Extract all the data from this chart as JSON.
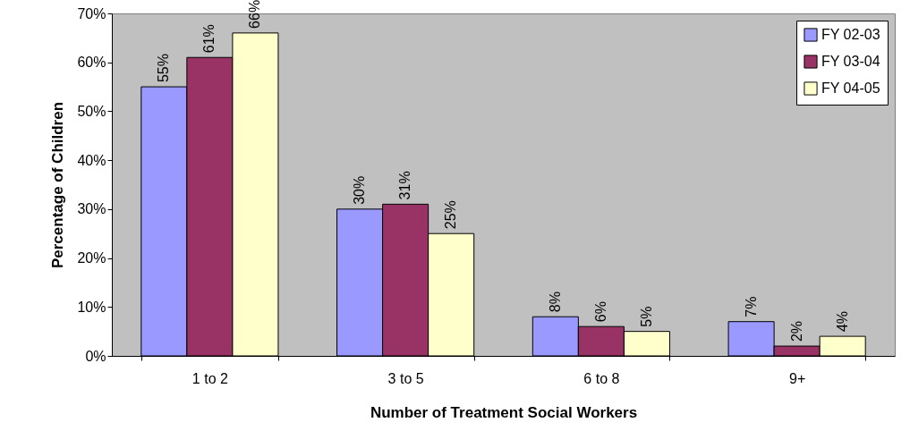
{
  "chart_data": {
    "type": "bar",
    "xlabel": "Number of Treatment Social Workers",
    "ylabel": "Percentage of Children",
    "categories": [
      "1 to 2",
      "3 to 5",
      "6 to 8",
      "9+"
    ],
    "series": [
      {
        "name": "FY 02-03",
        "color": "#9999ff",
        "values": [
          55,
          30,
          8,
          7
        ],
        "value_labels": [
          "55%",
          "30%",
          "8%",
          "7%"
        ]
      },
      {
        "name": "FY 03-04",
        "color": "#993366",
        "values": [
          61,
          31,
          6,
          2
        ],
        "value_labels": [
          "61%",
          "31%",
          "6%",
          "2%"
        ]
      },
      {
        "name": "FY 04-05",
        "color": "#ffffcc",
        "values": [
          66,
          25,
          5,
          4
        ],
        "value_labels": [
          "66%",
          "25%",
          "5%",
          "4%"
        ]
      }
    ],
    "ylim": [
      0,
      70
    ],
    "yticks": [
      {
        "value": 0,
        "label": "0%"
      },
      {
        "value": 10,
        "label": "10%"
      },
      {
        "value": 20,
        "label": "20%"
      },
      {
        "value": 30,
        "label": "30%"
      },
      {
        "value": 40,
        "label": "40%"
      },
      {
        "value": 50,
        "label": "50%"
      },
      {
        "value": 60,
        "label": "60%"
      },
      {
        "value": 70,
        "label": "70%"
      }
    ],
    "grid": false,
    "legend": "top right"
  }
}
